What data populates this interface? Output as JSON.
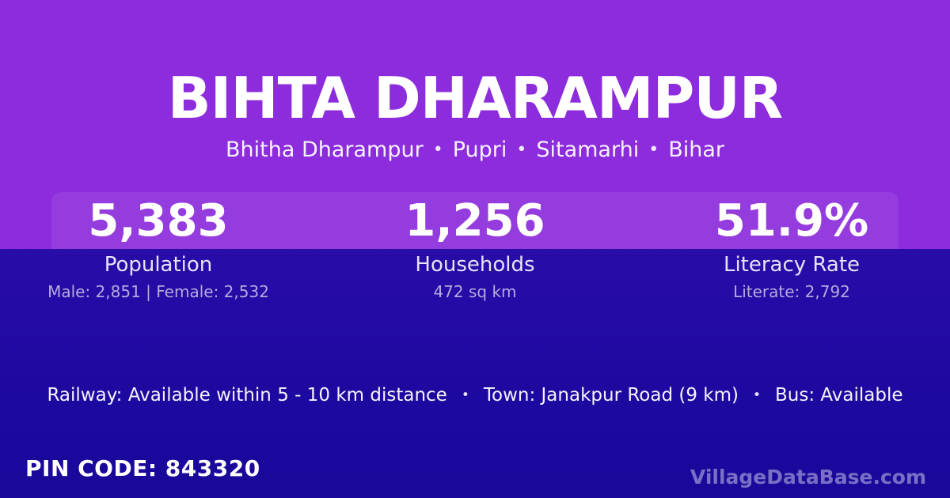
{
  "theme": {
    "purple_bg": "#8c2cdd",
    "stats_band_overlay": "rgba(255,255,255,0.08)",
    "indigo_bg_top": "#2a0ca9",
    "indigo_bg_bottom": "#19089a",
    "title_color": "#ffffff",
    "label_color": "#e9e2f7",
    "detail_color": "#b5aadd",
    "brand_color": "rgba(255,255,255,0.42)"
  },
  "header": {
    "title": "BIHTA DHARAMPUR",
    "subtitle_parts": [
      "Bhitha Dharampur",
      "Pupri",
      "Sitamarhi",
      "Bihar"
    ],
    "separator": "•"
  },
  "stats": [
    {
      "value": "5,383",
      "label": "Population",
      "detail": "Male: 2,851 | Female: 2,532"
    },
    {
      "value": "1,256",
      "label": "Households",
      "detail": "472 sq km"
    },
    {
      "value": "51.9%",
      "label": "Literacy Rate",
      "detail": "Literate: 2,792"
    }
  ],
  "transport": {
    "items": [
      "Railway: Available within 5 - 10 km distance",
      "Town: Janakpur Road (9 km)",
      "Bus: Available"
    ],
    "separator": "•"
  },
  "footer": {
    "pin_code": "PIN CODE: 843320",
    "brand": "VillageDataBase.com"
  }
}
